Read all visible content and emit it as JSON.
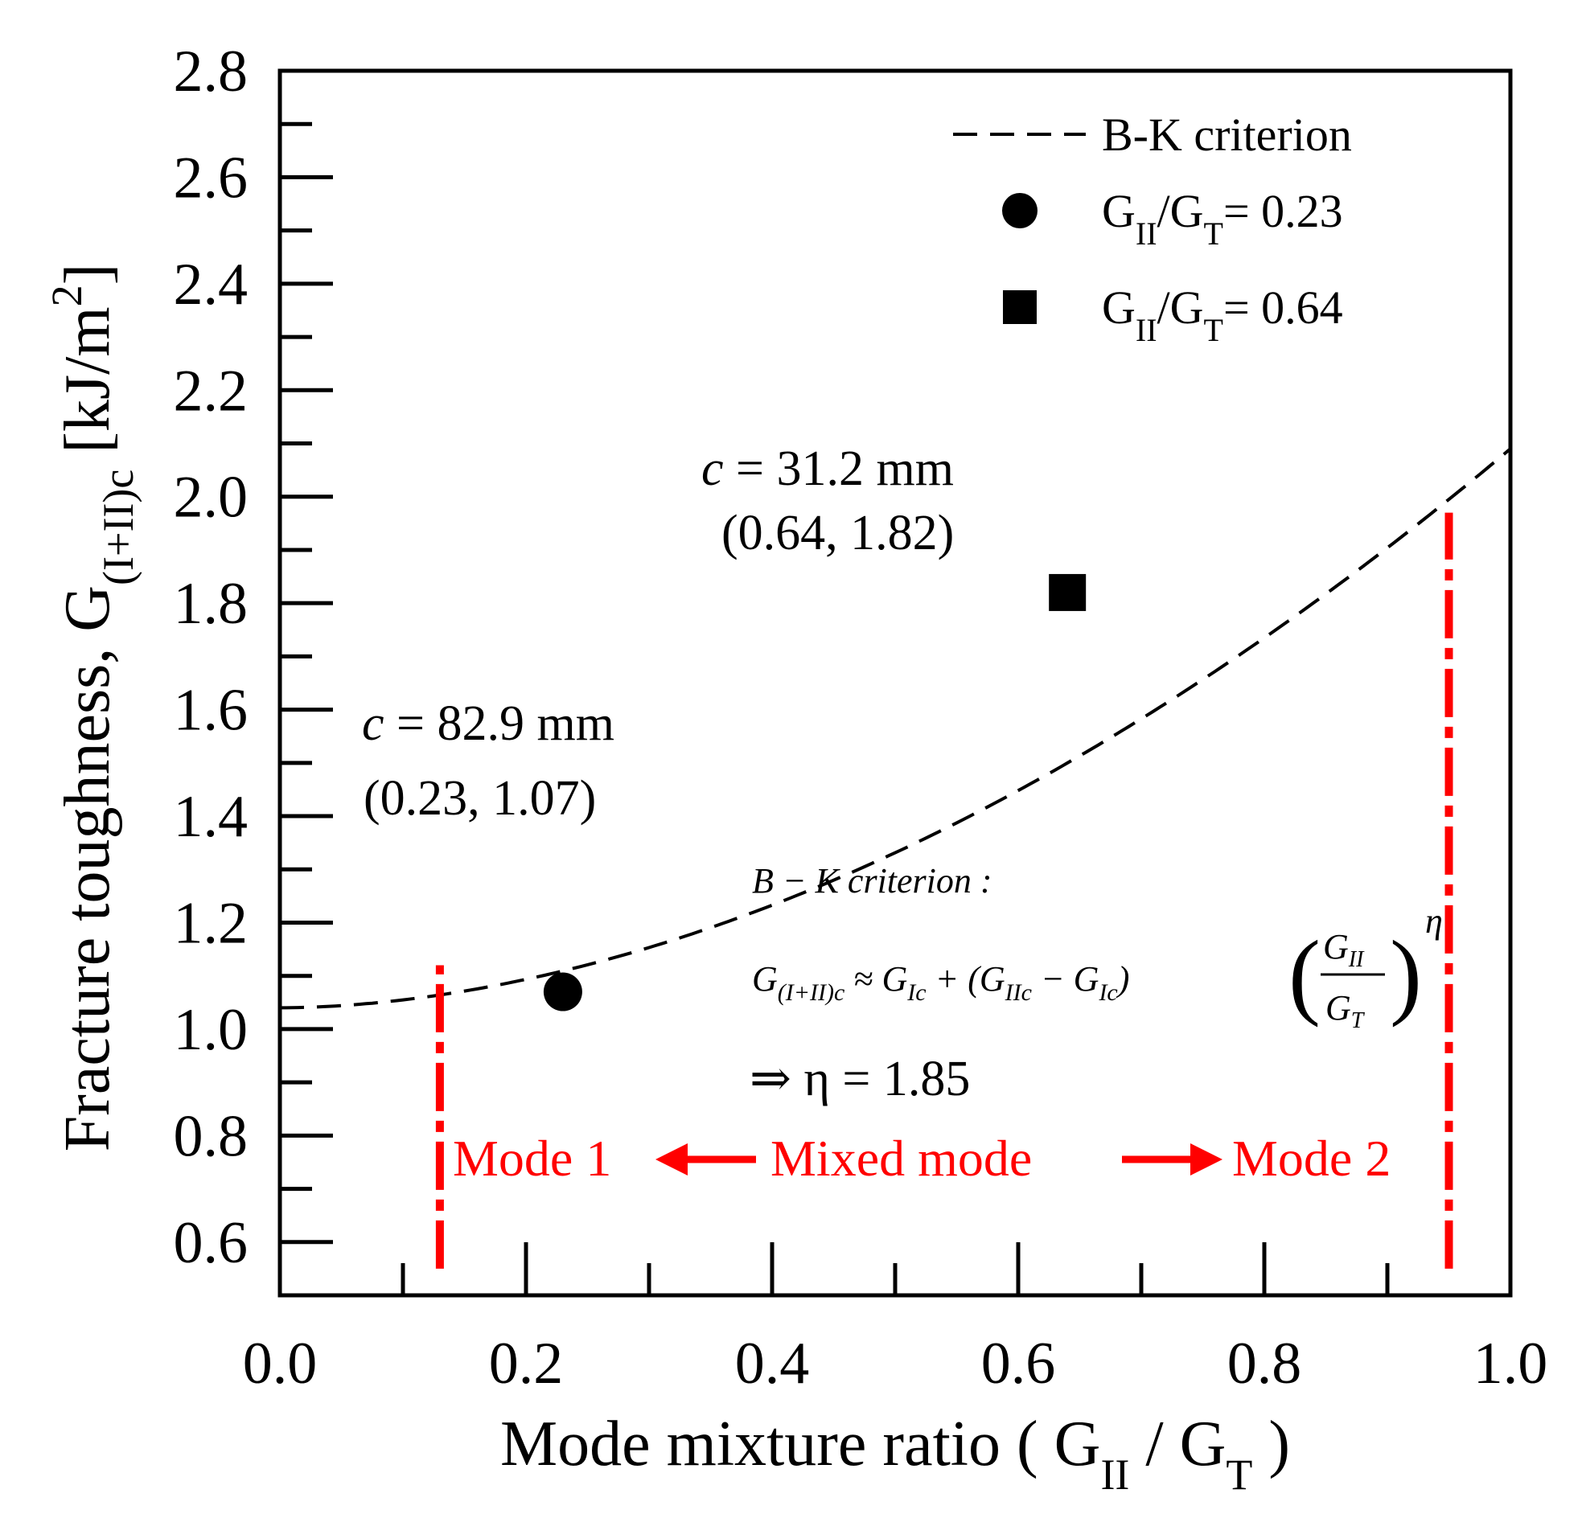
{
  "chart_data": {
    "type": "scatter",
    "xlabel": "Mode mixture ratio ( G",
    "xlabel_sub1": "II",
    "xlabel_mid": " / G",
    "xlabel_sub2": "T",
    "xlabel_end": " )",
    "ylabel": "Fracture toughness, G",
    "ylabel_sub": "(I+II)c",
    "ylabel_unit": " [kJ/m",
    "ylabel_sup": "2",
    "ylabel_end": "]",
    "xlim": [
      0.0,
      1.0
    ],
    "ylim": [
      0.5,
      2.8
    ],
    "xticks": [
      "0.0",
      "0.2",
      "0.4",
      "0.6",
      "0.8",
      "1.0"
    ],
    "xtick_values": [
      0.0,
      0.2,
      0.4,
      0.6,
      0.8,
      1.0
    ],
    "yticks": [
      "0.6",
      "0.8",
      "1.0",
      "1.2",
      "1.4",
      "1.6",
      "1.8",
      "2.0",
      "2.2",
      "2.4",
      "2.6",
      "2.8"
    ],
    "ytick_values": [
      0.6,
      0.8,
      1.0,
      1.2,
      1.4,
      1.6,
      1.8,
      2.0,
      2.2,
      2.4,
      2.6,
      2.8
    ],
    "bk_curve": {
      "name": "B-K criterion",
      "G_Ic": 1.04,
      "G_IIc": 2.09,
      "eta": 1.85,
      "style": "dashed",
      "color": "#000000"
    },
    "series": [
      {
        "name": "G_II/G_T= 0.23",
        "marker": "circle",
        "x": [
          0.23
        ],
        "y": [
          1.07
        ]
      },
      {
        "name": "G_II/G_T= 0.64",
        "marker": "square",
        "x": [
          0.64
        ],
        "y": [
          1.82
        ]
      }
    ],
    "legend": {
      "position": "top-right",
      "entries": [
        {
          "label": "B-K criterion",
          "symbol": "dashed-line"
        },
        {
          "label_main": "G",
          "label_sub1": "II",
          "label_mid": "/G",
          "label_sub2": "T",
          "label_end": "= 0.23",
          "symbol": "circle"
        },
        {
          "label_main": "G",
          "label_sub1": "II",
          "label_mid": "/G",
          "label_sub2": "T",
          "label_end": "= 0.64",
          "symbol": "square"
        }
      ]
    },
    "annotations": {
      "point1_c_var": "c",
      "point1_c_rest": " = 82.9 mm",
      "point1_coords": "(0.23, 1.07)",
      "point2_c_var": "c",
      "point2_c_rest": " = 31.2 mm",
      "point2_coords": "(0.64, 1.82)",
      "formula_title": "B − K criterion :",
      "formula_lhs": "G",
      "formula_lhs_sub": "(I+II)c",
      "formula_approx": " ≈ G",
      "formula_Ic1": "Ic",
      "formula_plus": " + (G",
      "formula_IIc": "IIc",
      "formula_minus": " − G",
      "formula_Ic2": "Ic",
      "formula_close": ")",
      "formula_frac_num": "G",
      "formula_frac_num_sub": "II",
      "formula_frac_den": "G",
      "formula_frac_den_sub": "T",
      "formula_exp": "η",
      "eta_result": "⇒  η = 1.85",
      "mode1": "Mode 1",
      "mixed": "Mixed mode",
      "mode2": "Mode 2"
    },
    "boundaries": [
      {
        "x": 0.13,
        "y_from": 0.55,
        "y_to": 1.12,
        "color": "#ff0000",
        "style": "dash-dot"
      },
      {
        "x": 0.95,
        "y_from": 0.55,
        "y_to": 1.97,
        "color": "#ff0000",
        "style": "dash-dot"
      }
    ],
    "colors": {
      "boundary": "#ff0000",
      "marker": "#000000"
    }
  }
}
